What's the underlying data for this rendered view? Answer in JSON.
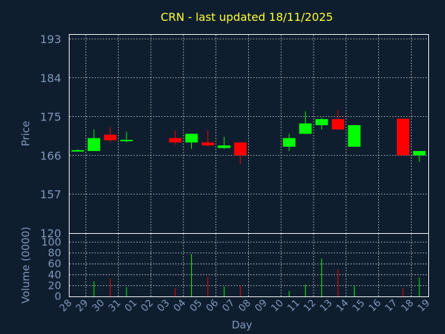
{
  "chart_data": [
    {
      "type": "candlestick",
      "title": "CRN - last updated 18/11/2025",
      "ylabel": "Price",
      "xlabel": "Day",
      "ylim": [
        120,
        193
      ],
      "y_ticks": [
        193,
        184,
        175,
        166,
        157,
        120
      ],
      "grid": true,
      "up_color": "#00ff00",
      "down_color": "#ff0000",
      "x_ticks": [
        "28",
        "29",
        "30",
        "31",
        "01",
        "02",
        "03",
        "04",
        "05",
        "06",
        "07",
        "08",
        "09",
        "10",
        "11",
        "12",
        "13",
        "14",
        "15",
        "16",
        "17",
        "18",
        "19"
      ],
      "candles": [
        {
          "day": "28",
          "open": 167.2,
          "close": 167.2,
          "high": 167.4,
          "low": 167.0
        },
        {
          "day": "29",
          "open": 167.0,
          "close": 170.0,
          "high": 172.0,
          "low": 167.0
        },
        {
          "day": "30",
          "open": 170.8,
          "close": 169.5,
          "high": 172.5,
          "low": 169.0
        },
        {
          "day": "31",
          "open": 169.3,
          "close": 169.6,
          "high": 171.5,
          "low": 169.0
        },
        {
          "day": "03",
          "open": 170.0,
          "close": 169.0,
          "high": 171.8,
          "low": 168.5
        },
        {
          "day": "04",
          "open": 169.0,
          "close": 171.0,
          "high": 171.0,
          "low": 167.5
        },
        {
          "day": "05",
          "open": 169.0,
          "close": 168.3,
          "high": 171.8,
          "low": 168.0
        },
        {
          "day": "06",
          "open": 167.7,
          "close": 168.3,
          "high": 170.3,
          "low": 167.5
        },
        {
          "day": "07",
          "open": 169.0,
          "close": 166.0,
          "high": 169.0,
          "low": 164.0
        },
        {
          "day": "10",
          "open": 168.0,
          "close": 170.0,
          "high": 171.0,
          "low": 167.0
        },
        {
          "day": "11",
          "open": 171.0,
          "close": 173.4,
          "high": 176.2,
          "low": 171.0
        },
        {
          "day": "12",
          "open": 173.0,
          "close": 174.4,
          "high": 174.7,
          "low": 172.0
        },
        {
          "day": "13",
          "open": 174.4,
          "close": 172.0,
          "high": 176.5,
          "low": 172.0
        },
        {
          "day": "14",
          "open": 168.0,
          "close": 173.0,
          "high": 173.0,
          "low": 168.0
        },
        {
          "day": "17",
          "open": 174.5,
          "close": 166.0,
          "high": 174.5,
          "low": 166.0
        },
        {
          "day": "18",
          "open": 166.0,
          "close": 167.0,
          "high": 167.0,
          "low": 164.5
        }
      ]
    },
    {
      "type": "bar",
      "ylabel": "Volume (0000)",
      "ylim": [
        0,
        115
      ],
      "y_ticks": [
        0,
        20,
        40,
        60,
        80,
        100
      ],
      "grid": true,
      "bars": [
        {
          "day": "28",
          "value": 0,
          "color": "#00ff00"
        },
        {
          "day": "29",
          "value": 28,
          "color": "#00ff00"
        },
        {
          "day": "30",
          "value": 33,
          "color": "#ff0000"
        },
        {
          "day": "31",
          "value": 17,
          "color": "#00ff00"
        },
        {
          "day": "03",
          "value": 15,
          "color": "#ff0000"
        },
        {
          "day": "04",
          "value": 78,
          "color": "#00ff00"
        },
        {
          "day": "05",
          "value": 37,
          "color": "#ff0000"
        },
        {
          "day": "06",
          "value": 18,
          "color": "#00ff00"
        },
        {
          "day": "07",
          "value": 20,
          "color": "#ff0000"
        },
        {
          "day": "10",
          "value": 10,
          "color": "#00ff00"
        },
        {
          "day": "11",
          "value": 22,
          "color": "#00ff00"
        },
        {
          "day": "12",
          "value": 70,
          "color": "#00ff00"
        },
        {
          "day": "13",
          "value": 50,
          "color": "#ff0000"
        },
        {
          "day": "14",
          "value": 20,
          "color": "#00ff00"
        },
        {
          "day": "17",
          "value": 15,
          "color": "#ff0000"
        },
        {
          "day": "18",
          "value": 35,
          "color": "#00ff00"
        }
      ]
    }
  ]
}
